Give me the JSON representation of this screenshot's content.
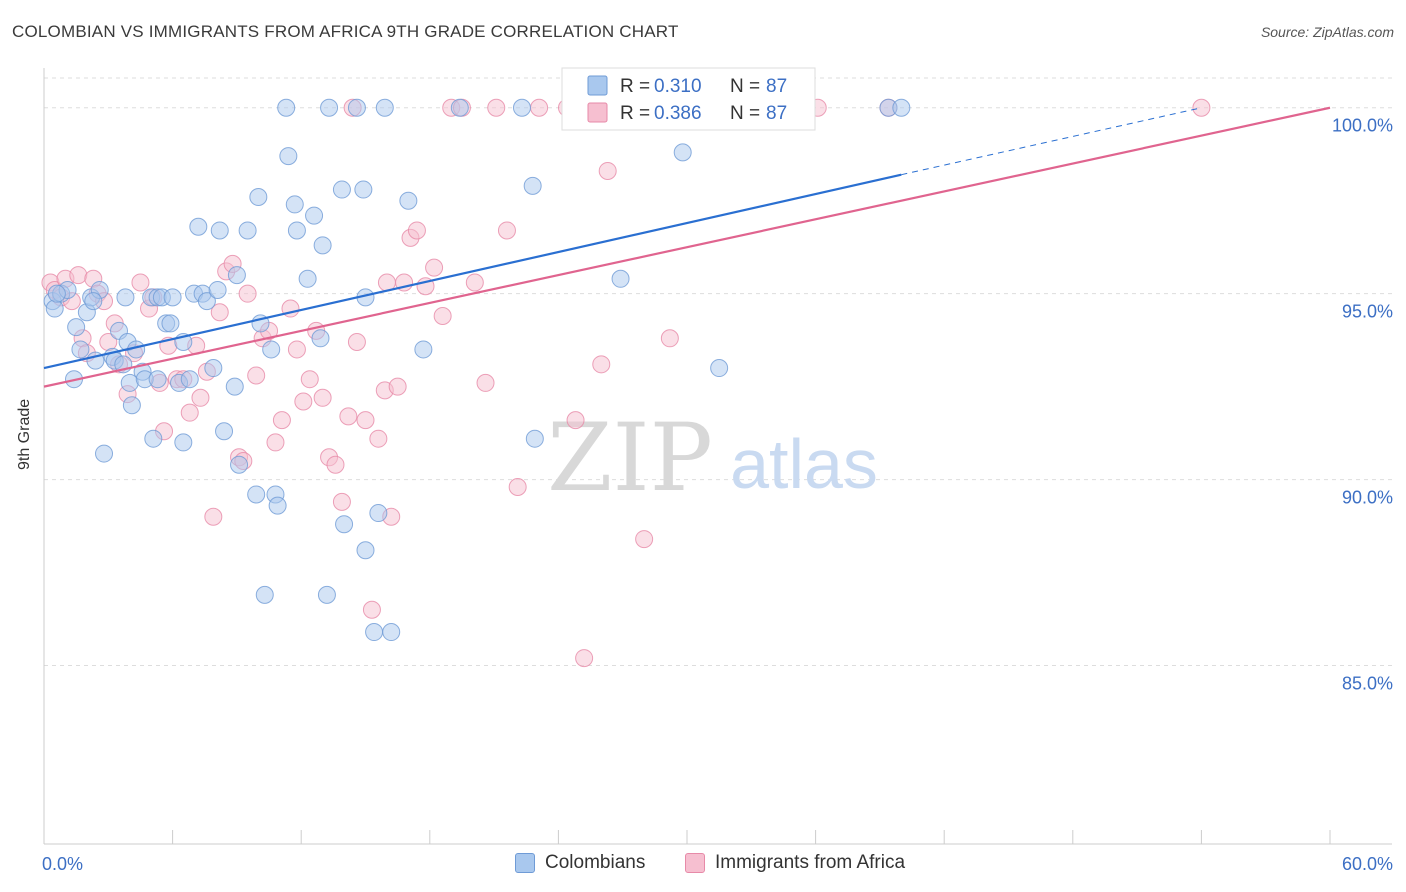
{
  "title": "COLOMBIAN VS IMMIGRANTS FROM AFRICA 9TH GRADE CORRELATION CHART",
  "source": "Source: ZipAtlas.com",
  "watermark": {
    "zip": "ZIP",
    "atlas": "atlas"
  },
  "colors": {
    "blue_fill": "#a9c8ee",
    "blue_stroke": "#6f9bd6",
    "blue_line": "#2a6fd1",
    "pink_fill": "#f6bfd0",
    "pink_stroke": "#e78aa8",
    "pink_line": "#e0648f",
    "axis_text": "#3c6fc4",
    "grid": "#dddddd"
  },
  "stats": [
    {
      "series": "Colombians",
      "r_label": "R =",
      "r_value": "0.310",
      "n_label": "N =",
      "n_value": "87"
    },
    {
      "series": "Immigrants from Africa",
      "r_label": "R =",
      "r_value": "0.386",
      "n_label": "N =",
      "n_value": "87"
    }
  ],
  "legend": [
    {
      "label": "Colombians"
    },
    {
      "label": "Immigrants from Africa"
    }
  ],
  "chart_data": {
    "type": "scatter",
    "xlabel": "",
    "ylabel": "9th Grade",
    "xlim": [
      0,
      60
    ],
    "ylim": [
      80.2,
      100.8
    ],
    "x_tick_labels": [
      "0.0%",
      "60.0%"
    ],
    "y_ticks": [
      85,
      90,
      95,
      100
    ],
    "y_tick_labels": [
      "85.0%",
      "90.0%",
      "95.0%",
      "100.0%"
    ],
    "grid": true,
    "legend_position": "bottom",
    "series": [
      {
        "name": "Colombians",
        "trend": {
          "x0": 0,
          "y0": 93.0,
          "x1": 40,
          "y1": 98.2,
          "dashed_to": [
            54,
            100.0
          ]
        },
        "points": [
          [
            0.4,
            94.8
          ],
          [
            0.5,
            94.6
          ],
          [
            0.8,
            95.0
          ],
          [
            1.1,
            95.1
          ],
          [
            1.5,
            94.1
          ],
          [
            1.7,
            93.5
          ],
          [
            1.4,
            92.7
          ],
          [
            2.0,
            94.5
          ],
          [
            2.2,
            94.9
          ],
          [
            2.4,
            93.2
          ],
          [
            2.6,
            95.1
          ],
          [
            2.8,
            90.7
          ],
          [
            3.2,
            93.3
          ],
          [
            3.3,
            93.2
          ],
          [
            3.5,
            94.0
          ],
          [
            3.7,
            93.1
          ],
          [
            3.8,
            94.9
          ],
          [
            3.9,
            93.7
          ],
          [
            4.0,
            92.6
          ],
          [
            4.1,
            92.0
          ],
          [
            4.3,
            93.5
          ],
          [
            4.6,
            92.9
          ],
          [
            4.7,
            92.7
          ],
          [
            5.0,
            94.9
          ],
          [
            5.1,
            91.1
          ],
          [
            5.3,
            92.7
          ],
          [
            5.3,
            94.9
          ],
          [
            5.5,
            94.9
          ],
          [
            5.7,
            94.2
          ],
          [
            5.9,
            94.2
          ],
          [
            6.0,
            94.9
          ],
          [
            6.3,
            92.6
          ],
          [
            6.5,
            93.7
          ],
          [
            6.5,
            91.0
          ],
          [
            6.8,
            92.7
          ],
          [
            7.0,
            95.0
          ],
          [
            7.2,
            96.8
          ],
          [
            7.4,
            95.0
          ],
          [
            7.6,
            94.8
          ],
          [
            7.9,
            93.0
          ],
          [
            8.1,
            95.1
          ],
          [
            8.2,
            96.7
          ],
          [
            8.4,
            91.3
          ],
          [
            8.9,
            92.5
          ],
          [
            9.0,
            95.5
          ],
          [
            9.1,
            90.4
          ],
          [
            9.5,
            96.7
          ],
          [
            9.9,
            89.6
          ],
          [
            10.0,
            97.6
          ],
          [
            10.1,
            94.2
          ],
          [
            10.3,
            86.9
          ],
          [
            10.6,
            93.5
          ],
          [
            10.8,
            89.6
          ],
          [
            10.9,
            89.3
          ],
          [
            11.3,
            100.0
          ],
          [
            11.4,
            98.7
          ],
          [
            11.7,
            97.4
          ],
          [
            11.8,
            96.7
          ],
          [
            12.3,
            95.4
          ],
          [
            12.6,
            97.1
          ],
          [
            12.9,
            93.8
          ],
          [
            13.0,
            96.3
          ],
          [
            13.2,
            86.9
          ],
          [
            13.3,
            100.0
          ],
          [
            13.9,
            97.8
          ],
          [
            14.0,
            88.8
          ],
          [
            14.6,
            100.0
          ],
          [
            14.9,
            97.8
          ],
          [
            15.0,
            88.1
          ],
          [
            15.4,
            85.9
          ],
          [
            15.6,
            89.1
          ],
          [
            15.9,
            100.0
          ],
          [
            16.2,
            85.9
          ],
          [
            17.0,
            97.5
          ],
          [
            17.7,
            93.5
          ],
          [
            19.4,
            100.0
          ],
          [
            22.3,
            100.0
          ],
          [
            22.8,
            97.9
          ],
          [
            22.9,
            91.1
          ],
          [
            26.9,
            95.4
          ],
          [
            29.8,
            98.8
          ],
          [
            31.5,
            93.0
          ],
          [
            39.4,
            100.0
          ],
          [
            40.0,
            100.0
          ],
          [
            0.6,
            95.0
          ],
          [
            2.3,
            94.8
          ],
          [
            15.0,
            94.9
          ]
        ]
      },
      {
        "name": "Immigrants from Africa",
        "trend": {
          "x0": 0,
          "y0": 92.5,
          "x1": 60,
          "y1": 100.0
        },
        "points": [
          [
            0.3,
            95.3
          ],
          [
            0.5,
            95.1
          ],
          [
            0.8,
            94.9
          ],
          [
            1.0,
            95.4
          ],
          [
            1.3,
            94.8
          ],
          [
            1.6,
            95.5
          ],
          [
            1.8,
            93.8
          ],
          [
            2.0,
            93.4
          ],
          [
            2.3,
            95.4
          ],
          [
            2.5,
            95.0
          ],
          [
            2.8,
            94.8
          ],
          [
            3.0,
            93.7
          ],
          [
            3.3,
            94.2
          ],
          [
            3.5,
            93.1
          ],
          [
            3.9,
            92.3
          ],
          [
            4.2,
            93.4
          ],
          [
            4.5,
            95.3
          ],
          [
            4.9,
            94.6
          ],
          [
            5.1,
            94.9
          ],
          [
            5.4,
            92.6
          ],
          [
            5.6,
            91.3
          ],
          [
            5.8,
            93.6
          ],
          [
            6.2,
            92.7
          ],
          [
            6.5,
            92.7
          ],
          [
            6.8,
            91.8
          ],
          [
            7.1,
            93.6
          ],
          [
            7.3,
            92.2
          ],
          [
            7.6,
            92.9
          ],
          [
            7.9,
            89.0
          ],
          [
            8.2,
            94.5
          ],
          [
            8.5,
            95.6
          ],
          [
            8.8,
            95.8
          ],
          [
            9.1,
            90.6
          ],
          [
            9.3,
            90.5
          ],
          [
            9.5,
            95.0
          ],
          [
            9.9,
            92.8
          ],
          [
            10.2,
            93.8
          ],
          [
            10.5,
            94.0
          ],
          [
            10.8,
            91.0
          ],
          [
            11.1,
            91.6
          ],
          [
            11.5,
            94.6
          ],
          [
            11.8,
            93.5
          ],
          [
            12.1,
            92.1
          ],
          [
            12.4,
            92.7
          ],
          [
            12.7,
            94.0
          ],
          [
            13.0,
            92.2
          ],
          [
            13.3,
            90.6
          ],
          [
            13.6,
            90.4
          ],
          [
            13.9,
            89.4
          ],
          [
            14.2,
            91.7
          ],
          [
            14.6,
            93.7
          ],
          [
            15.0,
            91.6
          ],
          [
            15.3,
            86.5
          ],
          [
            15.6,
            91.1
          ],
          [
            15.9,
            92.4
          ],
          [
            16.2,
            89.0
          ],
          [
            16.5,
            92.5
          ],
          [
            16.8,
            95.3
          ],
          [
            17.1,
            96.5
          ],
          [
            17.4,
            96.7
          ],
          [
            17.8,
            95.2
          ],
          [
            18.2,
            95.7
          ],
          [
            18.6,
            94.4
          ],
          [
            19.0,
            100.0
          ],
          [
            19.5,
            100.0
          ],
          [
            20.1,
            95.3
          ],
          [
            20.6,
            92.6
          ],
          [
            21.1,
            100.0
          ],
          [
            21.6,
            96.7
          ],
          [
            22.1,
            89.8
          ],
          [
            23.1,
            100.0
          ],
          [
            24.4,
            100.0
          ],
          [
            24.8,
            91.6
          ],
          [
            25.2,
            85.2
          ],
          [
            26.0,
            93.1
          ],
          [
            26.3,
            98.3
          ],
          [
            28.0,
            88.4
          ],
          [
            29.2,
            93.8
          ],
          [
            32.5,
            100.0
          ],
          [
            34.6,
            100.0
          ],
          [
            35.4,
            100.0
          ],
          [
            36.1,
            100.0
          ],
          [
            39.4,
            100.0
          ],
          [
            54.0,
            100.0
          ],
          [
            14.4,
            100.0
          ],
          [
            26.0,
            100.0
          ],
          [
            16.0,
            95.3
          ]
        ]
      }
    ]
  }
}
